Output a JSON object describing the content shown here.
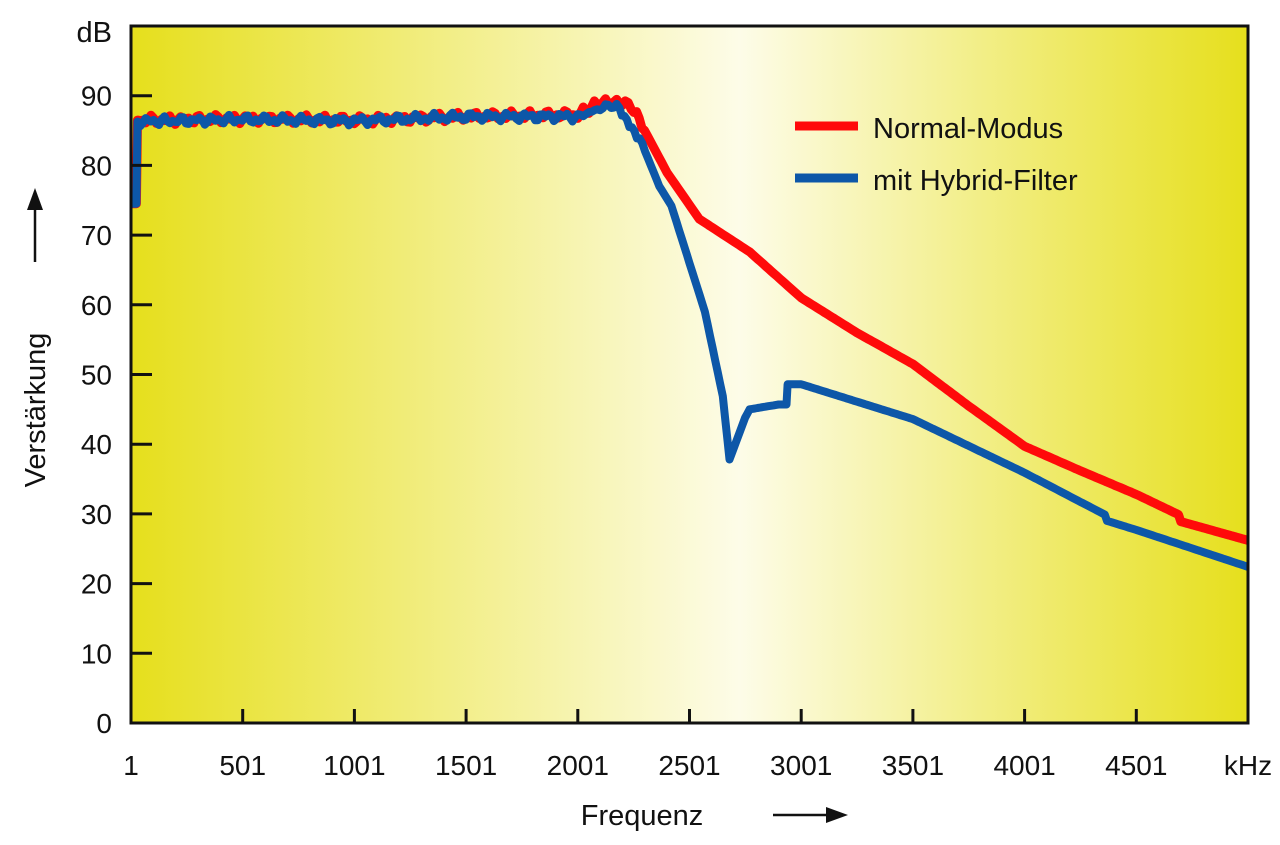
{
  "chart_data": {
    "type": "line",
    "title": "",
    "xlabel": "Frequenz",
    "ylabel": "Verstärkung",
    "x_unit": "kHz",
    "y_unit": "dB",
    "xlim": [
      1,
      5001
    ],
    "ylim": [
      0,
      100
    ],
    "x_ticks": [
      "1",
      "501",
      "1001",
      "1501",
      "2001",
      "2501",
      "3001",
      "3501",
      "4001",
      "4501"
    ],
    "y_ticks": [
      "0",
      "10",
      "20",
      "30",
      "40",
      "50",
      "60",
      "70",
      "80",
      "90"
    ],
    "grid": false,
    "legend_position": "top-right",
    "background": {
      "edge_color": "#e6df1c",
      "center_color": "#fdfce8",
      "center_at_x": 2725
    },
    "series": [
      {
        "name": "Normal-Modus",
        "color": "#ff0a0a",
        "points": [
          [
            1,
            74.5
          ],
          [
            25,
            74.5
          ],
          [
            30,
            86.5
          ],
          [
            500,
            86.7
          ],
          [
            1000,
            86.5
          ],
          [
            1500,
            87
          ],
          [
            2001,
            87.3
          ],
          [
            2100,
            89
          ],
          [
            2200,
            89
          ],
          [
            2240,
            88.5
          ],
          [
            2300,
            85
          ],
          [
            2400,
            79
          ],
          [
            2545,
            72.3
          ],
          [
            2770,
            67.6
          ],
          [
            3001,
            61
          ],
          [
            3250,
            56
          ],
          [
            3501,
            51.5
          ],
          [
            3750,
            45.5
          ],
          [
            4001,
            39.7
          ],
          [
            4250,
            36.2
          ],
          [
            4501,
            32.8
          ],
          [
            4690,
            29.9
          ],
          [
            4700,
            28.9
          ],
          [
            5001,
            26.2
          ]
        ]
      },
      {
        "name": "mit Hybrid-Filter",
        "color": "#0d57a8",
        "points": [
          [
            1,
            74.5
          ],
          [
            25,
            74.5
          ],
          [
            30,
            86.3
          ],
          [
            500,
            86.6
          ],
          [
            1000,
            86.4
          ],
          [
            1500,
            87
          ],
          [
            2001,
            87
          ],
          [
            2150,
            88.7
          ],
          [
            2187,
            88
          ],
          [
            2277,
            84
          ],
          [
            2366,
            77
          ],
          [
            2420,
            74.2
          ],
          [
            2570,
            59
          ],
          [
            2650,
            46.9
          ],
          [
            2680,
            37.8
          ],
          [
            2750,
            43.8
          ],
          [
            2770,
            45
          ],
          [
            2900,
            45.7
          ],
          [
            2935,
            45.7
          ],
          [
            2940,
            48.6
          ],
          [
            3001,
            48.6
          ],
          [
            3501,
            43.6
          ],
          [
            4001,
            35.9
          ],
          [
            4360,
            29.9
          ],
          [
            4370,
            29
          ],
          [
            4501,
            27.7
          ],
          [
            5001,
            22.4
          ]
        ]
      }
    ]
  }
}
